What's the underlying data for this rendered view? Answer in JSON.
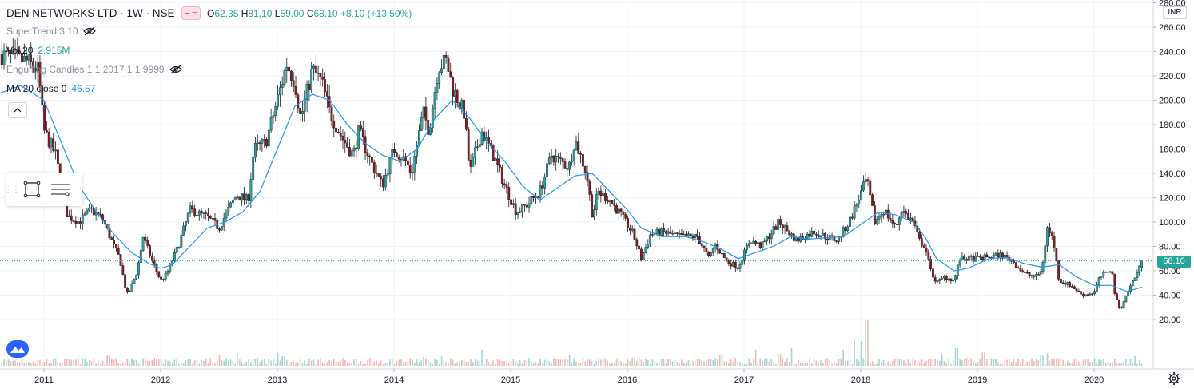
{
  "header": {
    "symbol": "DEN NETWORKS LTD · 1W · NSE",
    "ohlc": [
      {
        "key": "O",
        "value": "62.35"
      },
      {
        "key": "H",
        "value": "81.10"
      },
      {
        "key": "L",
        "value": "59.00"
      },
      {
        "key": "C",
        "value": "68.10"
      }
    ],
    "change": "+8.10 (+13.50%)"
  },
  "indicators": {
    "supertrend": "SuperTrend 3 10",
    "volume_label": "Vol 20",
    "volume_value": "2.915M",
    "engulfing": "Engulfing Candles 1 1 2017 1 1 9999",
    "ma_label": "MA 20 close 0",
    "ma_value": "46.57"
  },
  "price_axis": {
    "currency": "INR",
    "ticks": [
      "280.00",
      "260.00",
      "240.00",
      "220.00",
      "200.00",
      "180.00",
      "160.00",
      "140.00",
      "120.00",
      "100.00",
      "80.00",
      "60.00",
      "40.00",
      "20.00"
    ],
    "last_price": "68.10"
  },
  "colors": {
    "up": "#26a69a",
    "down": "#ef5350",
    "candle_up_fill": "#26a69a",
    "candle_down_fill": "#8b1a1a",
    "ma_line": "#2196f3",
    "grid": "#f0f3fa",
    "price_label_bg": "#26a69a"
  },
  "chart_data": {
    "type": "candlestick",
    "interval": "1W",
    "x_ticks": [
      "2011",
      "2012",
      "2013",
      "2014",
      "2015",
      "2016",
      "2017",
      "2018",
      "2019",
      "2020"
    ],
    "ylim": [
      0,
      280
    ],
    "price_path": [
      [
        2010.6,
        238
      ],
      [
        2010.85,
        232
      ],
      [
        2010.95,
        225
      ],
      [
        2011.0,
        175
      ],
      [
        2011.1,
        155
      ],
      [
        2011.2,
        105
      ],
      [
        2011.3,
        100
      ],
      [
        2011.4,
        110
      ],
      [
        2011.5,
        103
      ],
      [
        2011.6,
        80
      ],
      [
        2011.65,
        70
      ],
      [
        2011.7,
        45
      ],
      [
        2011.72,
        40
      ],
      [
        2011.8,
        60
      ],
      [
        2011.85,
        88
      ],
      [
        2011.92,
        70
      ],
      [
        2012.0,
        52
      ],
      [
        2012.05,
        57
      ],
      [
        2012.15,
        80
      ],
      [
        2012.25,
        110
      ],
      [
        2012.4,
        104
      ],
      [
        2012.5,
        95
      ],
      [
        2012.55,
        105
      ],
      [
        2012.65,
        122
      ],
      [
        2012.75,
        118
      ],
      [
        2012.8,
        160
      ],
      [
        2012.9,
        165
      ],
      [
        2013.0,
        200
      ],
      [
        2013.08,
        230
      ],
      [
        2013.15,
        215
      ],
      [
        2013.2,
        185
      ],
      [
        2013.3,
        225
      ],
      [
        2013.38,
        215
      ],
      [
        2013.45,
        190
      ],
      [
        2013.55,
        170
      ],
      [
        2013.65,
        155
      ],
      [
        2013.7,
        175
      ],
      [
        2013.8,
        150
      ],
      [
        2013.9,
        130
      ],
      [
        2013.95,
        145
      ],
      [
        2014.0,
        160
      ],
      [
        2014.1,
        150
      ],
      [
        2014.15,
        140
      ],
      [
        2014.25,
        190
      ],
      [
        2014.3,
        175
      ],
      [
        2014.38,
        228
      ],
      [
        2014.45,
        232
      ],
      [
        2014.5,
        210
      ],
      [
        2014.6,
        190
      ],
      [
        2014.65,
        140
      ],
      [
        2014.75,
        175
      ],
      [
        2014.85,
        155
      ],
      [
        2014.95,
        130
      ],
      [
        2015.05,
        108
      ],
      [
        2015.15,
        115
      ],
      [
        2015.25,
        125
      ],
      [
        2015.35,
        155
      ],
      [
        2015.5,
        145
      ],
      [
        2015.55,
        168
      ],
      [
        2015.65,
        140
      ],
      [
        2015.7,
        105
      ],
      [
        2015.75,
        125
      ],
      [
        2015.85,
        118
      ],
      [
        2015.95,
        105
      ],
      [
        2016.05,
        90
      ],
      [
        2016.12,
        70
      ],
      [
        2016.2,
        90
      ],
      [
        2016.3,
        92
      ],
      [
        2016.45,
        88
      ],
      [
        2016.6,
        88
      ],
      [
        2016.7,
        70
      ],
      [
        2016.75,
        82
      ],
      [
        2016.85,
        68
      ],
      [
        2016.95,
        63
      ],
      [
        2017.05,
        85
      ],
      [
        2017.15,
        80
      ],
      [
        2017.3,
        100
      ],
      [
        2017.45,
        85
      ],
      [
        2017.6,
        92
      ],
      [
        2017.7,
        88
      ],
      [
        2017.8,
        85
      ],
      [
        2017.9,
        100
      ],
      [
        2018.05,
        135
      ],
      [
        2018.12,
        100
      ],
      [
        2018.2,
        110
      ],
      [
        2018.3,
        95
      ],
      [
        2018.35,
        110
      ],
      [
        2018.45,
        100
      ],
      [
        2018.5,
        85
      ],
      [
        2018.55,
        80
      ],
      [
        2018.6,
        60
      ],
      [
        2018.65,
        50
      ],
      [
        2018.72,
        55
      ],
      [
        2018.8,
        52
      ],
      [
        2018.85,
        70
      ],
      [
        2019.0,
        70
      ],
      [
        2019.2,
        73
      ],
      [
        2019.3,
        68
      ],
      [
        2019.4,
        58
      ],
      [
        2019.5,
        55
      ],
      [
        2019.55,
        60
      ],
      [
        2019.6,
        95
      ],
      [
        2019.65,
        85
      ],
      [
        2019.7,
        52
      ],
      [
        2019.8,
        48
      ],
      [
        2019.9,
        40
      ],
      [
        2020.0,
        42
      ],
      [
        2020.05,
        55
      ],
      [
        2020.1,
        58
      ],
      [
        2020.15,
        62
      ],
      [
        2020.18,
        40
      ],
      [
        2020.22,
        28
      ],
      [
        2020.3,
        45
      ],
      [
        2020.35,
        55
      ],
      [
        2020.38,
        60
      ],
      [
        2020.41,
        68.1
      ]
    ],
    "ma_path": [
      [
        2010.6,
        205
      ],
      [
        2010.8,
        212
      ],
      [
        2011.0,
        200
      ],
      [
        2011.15,
        165
      ],
      [
        2011.3,
        130
      ],
      [
        2011.45,
        108
      ],
      [
        2011.6,
        90
      ],
      [
        2011.75,
        75
      ],
      [
        2011.9,
        66
      ],
      [
        2012.0,
        62
      ],
      [
        2012.1,
        65
      ],
      [
        2012.25,
        80
      ],
      [
        2012.4,
        95
      ],
      [
        2012.55,
        100
      ],
      [
        2012.7,
        108
      ],
      [
        2012.85,
        125
      ],
      [
        2013.0,
        160
      ],
      [
        2013.15,
        195
      ],
      [
        2013.3,
        205
      ],
      [
        2013.45,
        200
      ],
      [
        2013.6,
        180
      ],
      [
        2013.75,
        165
      ],
      [
        2013.9,
        155
      ],
      [
        2014.05,
        150
      ],
      [
        2014.2,
        160
      ],
      [
        2014.35,
        185
      ],
      [
        2014.5,
        200
      ],
      [
        2014.65,
        185
      ],
      [
        2014.8,
        165
      ],
      [
        2014.95,
        150
      ],
      [
        2015.1,
        130
      ],
      [
        2015.25,
        118
      ],
      [
        2015.4,
        128
      ],
      [
        2015.55,
        138
      ],
      [
        2015.7,
        140
      ],
      [
        2015.85,
        125
      ],
      [
        2016.0,
        110
      ],
      [
        2016.12,
        95
      ],
      [
        2016.3,
        88
      ],
      [
        2016.5,
        88
      ],
      [
        2016.65,
        84
      ],
      [
        2016.8,
        78
      ],
      [
        2016.95,
        70
      ],
      [
        2017.1,
        75
      ],
      [
        2017.25,
        80
      ],
      [
        2017.4,
        88
      ],
      [
        2017.55,
        86
      ],
      [
        2017.7,
        87
      ],
      [
        2017.85,
        88
      ],
      [
        2018.0,
        98
      ],
      [
        2018.15,
        108
      ],
      [
        2018.3,
        106
      ],
      [
        2018.45,
        100
      ],
      [
        2018.55,
        88
      ],
      [
        2018.65,
        70
      ],
      [
        2018.8,
        60
      ],
      [
        2018.92,
        62
      ],
      [
        2019.1,
        70
      ],
      [
        2019.25,
        71
      ],
      [
        2019.4,
        66
      ],
      [
        2019.55,
        63
      ],
      [
        2019.7,
        65
      ],
      [
        2019.85,
        55
      ],
      [
        2020.0,
        48
      ],
      [
        2020.15,
        48
      ],
      [
        2020.28,
        43
      ],
      [
        2020.41,
        46.57
      ]
    ],
    "volume_spikes": [
      {
        "x": 2011.55,
        "v": 0.55
      },
      {
        "x": 2011.62,
        "v": 0.3
      },
      {
        "x": 2012.5,
        "v": 0.5
      },
      {
        "x": 2012.65,
        "v": 0.6
      },
      {
        "x": 2013.0,
        "v": 0.7
      },
      {
        "x": 2013.05,
        "v": 0.45
      },
      {
        "x": 2014.25,
        "v": 0.4
      },
      {
        "x": 2014.4,
        "v": 0.45
      },
      {
        "x": 2014.75,
        "v": 0.9
      },
      {
        "x": 2015.5,
        "v": 0.5
      },
      {
        "x": 2016.05,
        "v": 0.35
      },
      {
        "x": 2016.8,
        "v": 0.5
      },
      {
        "x": 2017.1,
        "v": 0.9
      },
      {
        "x": 2017.3,
        "v": 0.6
      },
      {
        "x": 2017.4,
        "v": 1.0
      },
      {
        "x": 2017.85,
        "v": 0.9
      },
      {
        "x": 2017.95,
        "v": 1.6
      },
      {
        "x": 2018.05,
        "v": 3.0
      },
      {
        "x": 2018.0,
        "v": 1.5
      },
      {
        "x": 2018.7,
        "v": 0.6
      },
      {
        "x": 2018.82,
        "v": 1.0
      },
      {
        "x": 2019.05,
        "v": 0.7
      },
      {
        "x": 2019.55,
        "v": 0.5
      },
      {
        "x": 2019.6,
        "v": 0.65
      },
      {
        "x": 2020.35,
        "v": 0.45
      }
    ]
  }
}
